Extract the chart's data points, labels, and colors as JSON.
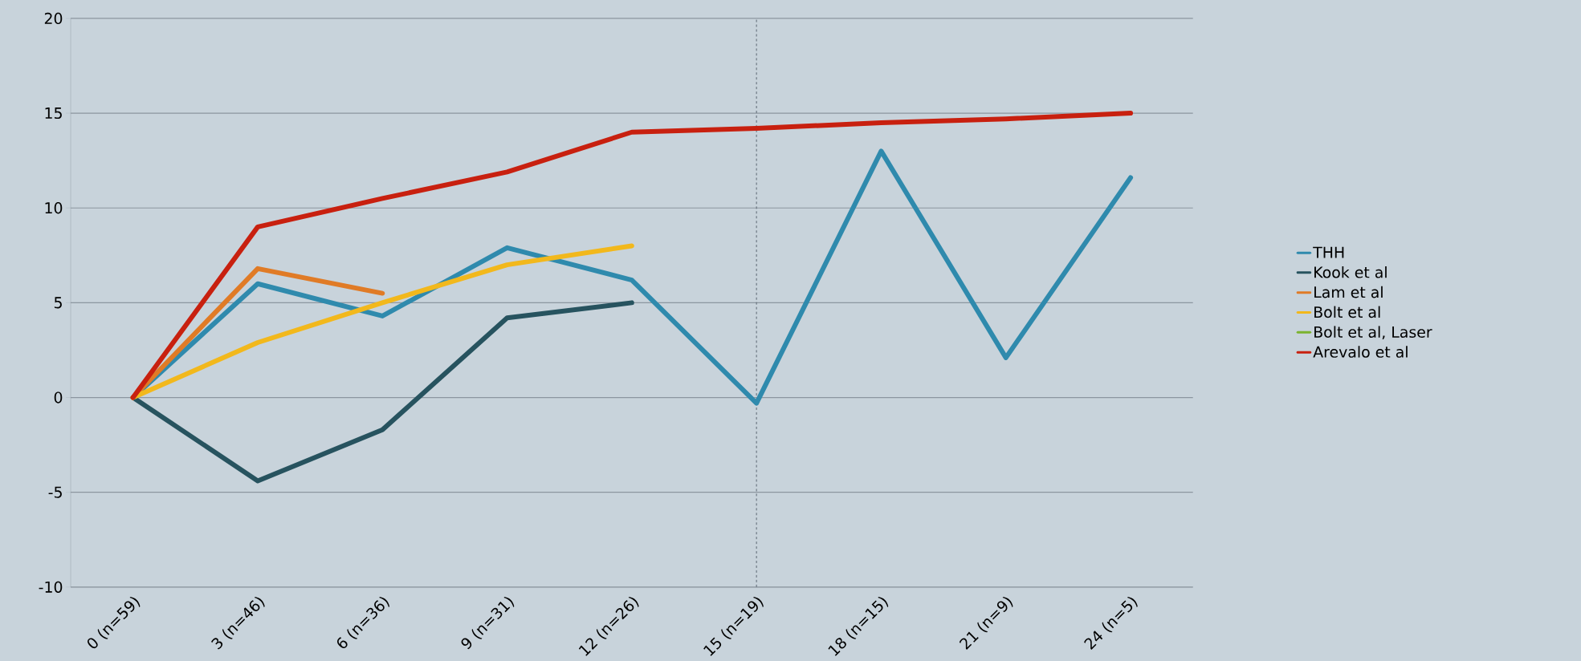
{
  "chart_data": {
    "type": "line",
    "categories": [
      "0 (n=59)",
      "3  (n=46)",
      "6 (n=36)",
      "9 (n=31)",
      "12 (n=26)",
      "15 (n=19)",
      "18 (n=15)",
      "21 (n=9)",
      "24 (n=5)"
    ],
    "ref_lines": [
      {
        "axis": "x",
        "value": "15 (n=19)",
        "color": "#5a6670",
        "line_style": "dashed"
      }
    ],
    "ylim": [
      -10,
      20
    ],
    "yticks": [
      -10,
      -5,
      0,
      5,
      10,
      15,
      20
    ],
    "grid": "y",
    "legend": "right",
    "marker": "none",
    "line_style": "solid",
    "series": [
      {
        "name": "THH",
        "color": "#2f8aad",
        "values": [
          0,
          6.0,
          4.3,
          7.9,
          6.2,
          -0.3,
          13.0,
          2.1,
          11.6
        ]
      },
      {
        "name": "Kook et al",
        "color": "#27535f",
        "values": [
          0,
          -4.4,
          -1.7,
          4.2,
          5.0,
          null,
          null,
          null,
          null
        ]
      },
      {
        "name": "Lam et al",
        "color": "#e07b26",
        "values": [
          0,
          6.8,
          5.5,
          null,
          null,
          null,
          null,
          null,
          null
        ]
      },
      {
        "name": "Bolt et al",
        "color": "#f2b81c",
        "values": [
          0,
          2.9,
          5.0,
          7.0,
          8.0,
          null,
          null,
          null,
          null
        ]
      },
      {
        "name": "Bolt et al, Laser",
        "color": "#7bb32e",
        "values": [
          null,
          null,
          null,
          null,
          null,
          null,
          null,
          null,
          null
        ]
      },
      {
        "name": "Arevalo et al",
        "color": "#c8200f",
        "values": [
          0,
          9.0,
          10.5,
          11.9,
          14.0,
          14.2,
          14.5,
          14.7,
          15.0
        ]
      }
    ]
  }
}
